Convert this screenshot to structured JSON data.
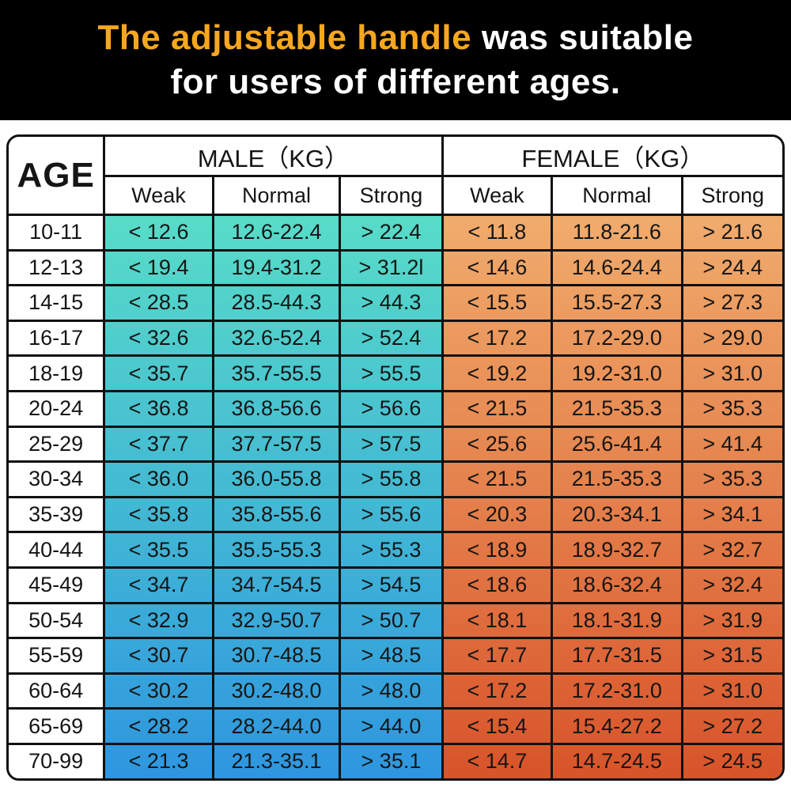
{
  "banner": {
    "title_highlight": "The adjustable handle",
    "title_rest": " was suitable",
    "title_line2": "for users of different ages.",
    "highlight_color": "#F7A71F",
    "background_color": "#000000",
    "text_color": "#FFFFFF"
  },
  "colors": {
    "male_gradient_top": "#58DCC7",
    "male_gradient_bottom": "#2E96DF",
    "female_gradient_top": "#F0AC6D",
    "female_gradient_bottom": "#D8532A",
    "border": "#111111",
    "cell_text": "#151515",
    "age_column_background": "#FFFFFF"
  },
  "chart_data": {
    "type": "table",
    "title": "The adjustable handle was suitable for users of different ages.",
    "row_header": "AGE",
    "column_groups": [
      {
        "label": "MALE（KG）"
      },
      {
        "label": "FEMALE（KG）"
      }
    ],
    "subcolumns": [
      "Weak",
      "Normal",
      "Strong"
    ],
    "unit": "KG",
    "rows": [
      {
        "age": "10-11",
        "male": [
          "< 12.6",
          "12.6-22.4",
          "> 22.4"
        ],
        "female": [
          "< 11.8",
          "11.8-21.6",
          "> 21.6"
        ]
      },
      {
        "age": "12-13",
        "male": [
          "< 19.4",
          "19.4-31.2",
          "> 31.2l"
        ],
        "female": [
          "< 14.6",
          "14.6-24.4",
          "> 24.4"
        ]
      },
      {
        "age": "14-15",
        "male": [
          "< 28.5",
          "28.5-44.3",
          "> 44.3"
        ],
        "female": [
          "< 15.5",
          "15.5-27.3",
          "> 27.3"
        ]
      },
      {
        "age": "16-17",
        "male": [
          "< 32.6",
          "32.6-52.4",
          "> 52.4"
        ],
        "female": [
          "< 17.2",
          "17.2-29.0",
          "> 29.0"
        ]
      },
      {
        "age": "18-19",
        "male": [
          "< 35.7",
          "35.7-55.5",
          "> 55.5"
        ],
        "female": [
          "< 19.2",
          "19.2-31.0",
          "> 31.0"
        ]
      },
      {
        "age": "20-24",
        "male": [
          "< 36.8",
          "36.8-56.6",
          "> 56.6"
        ],
        "female": [
          "< 21.5",
          "21.5-35.3",
          "> 35.3"
        ]
      },
      {
        "age": "25-29",
        "male": [
          "< 37.7",
          "37.7-57.5",
          "> 57.5"
        ],
        "female": [
          "< 25.6",
          "25.6-41.4",
          "> 41.4"
        ]
      },
      {
        "age": "30-34",
        "male": [
          "< 36.0",
          "36.0-55.8",
          "> 55.8"
        ],
        "female": [
          "< 21.5",
          "21.5-35.3",
          "> 35.3"
        ]
      },
      {
        "age": "35-39",
        "male": [
          "< 35.8",
          "35.8-55.6",
          "> 55.6"
        ],
        "female": [
          "< 20.3",
          "20.3-34.1",
          "> 34.1"
        ]
      },
      {
        "age": "40-44",
        "male": [
          "< 35.5",
          "35.5-55.3",
          "> 55.3"
        ],
        "female": [
          "< 18.9",
          "18.9-32.7",
          "> 32.7"
        ]
      },
      {
        "age": "45-49",
        "male": [
          "< 34.7",
          "34.7-54.5",
          "> 54.5"
        ],
        "female": [
          "< 18.6",
          "18.6-32.4",
          "> 32.4"
        ]
      },
      {
        "age": "50-54",
        "male": [
          "< 32.9",
          "32.9-50.7",
          "> 50.7"
        ],
        "female": [
          "< 18.1",
          "18.1-31.9",
          "> 31.9"
        ]
      },
      {
        "age": "55-59",
        "male": [
          "< 30.7",
          "30.7-48.5",
          "> 48.5"
        ],
        "female": [
          "< 17.7",
          "17.7-31.5",
          "> 31.5"
        ]
      },
      {
        "age": "60-64",
        "male": [
          "< 30.2",
          "30.2-48.0",
          "> 48.0"
        ],
        "female": [
          "< 17.2",
          "17.2-31.0",
          "> 31.0"
        ]
      },
      {
        "age": "65-69",
        "male": [
          "< 28.2",
          "28.2-44.0",
          "> 44.0"
        ],
        "female": [
          "< 15.4",
          "15.4-27.2",
          "> 27.2"
        ]
      },
      {
        "age": "70-99",
        "male": [
          "< 21.3",
          "21.3-35.1",
          "> 35.1"
        ],
        "female": [
          "< 14.7",
          "14.7-24.5",
          "> 24.5"
        ]
      }
    ]
  }
}
